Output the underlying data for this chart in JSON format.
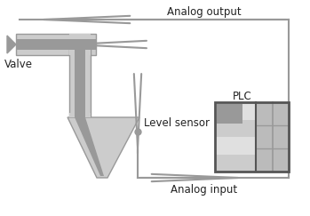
{
  "bg_color": "#ffffff",
  "dark_gray": "#999999",
  "mid_gray": "#bbbbbb",
  "light_gray": "#cccccc",
  "very_light_gray": "#e0e0e0",
  "text_color": "#222222",
  "analog_output_label": "Analog output",
  "analog_input_label": "Analog input",
  "valve_label": "Valve",
  "level_sensor_label": "Level sensor",
  "plc_label": "PLC",
  "font_size": 8.5
}
